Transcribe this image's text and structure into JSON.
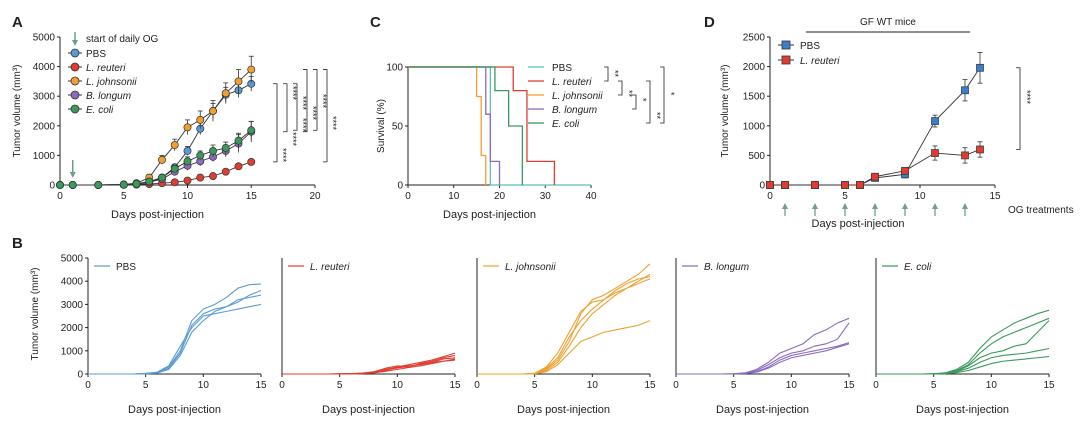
{
  "colors": {
    "pbs": "#5b9bd5",
    "reuteri": "#e03c31",
    "johnsonii": "#f0a030",
    "longum": "#8a6bbf",
    "coli": "#3a9a5a",
    "arrow": "#6aa08a"
  },
  "chart_data": [
    {
      "id": "A",
      "type": "line",
      "panel_label": "A",
      "xlabel": "Days post-injection",
      "ylabel": "Tumor volume (mm³)",
      "xlim": [
        0,
        20
      ],
      "ylim": [
        0,
        5000
      ],
      "xticks": [
        0,
        5,
        10,
        15,
        20
      ],
      "yticks": [
        0,
        1000,
        2000,
        3000,
        4000,
        5000
      ],
      "annotation": "start of daily OG",
      "series": [
        {
          "name": "PBS",
          "color": "#5b9bd5",
          "x": [
            0,
            1,
            3,
            5,
            6,
            7,
            8,
            9,
            10,
            11,
            12,
            13,
            14,
            15
          ],
          "values": [
            0,
            0,
            0,
            10,
            30,
            80,
            250,
            600,
            1150,
            1900,
            2500,
            3050,
            3200,
            3420
          ],
          "err": [
            0,
            0,
            0,
            10,
            15,
            30,
            60,
            100,
            150,
            200,
            250,
            250,
            250,
            250
          ]
        },
        {
          "name": "L. reuteri",
          "color": "#e03c31",
          "x": [
            0,
            1,
            3,
            5,
            6,
            7,
            8,
            9,
            10,
            11,
            12,
            13,
            14,
            15
          ],
          "values": [
            0,
            0,
            0,
            5,
            15,
            30,
            60,
            90,
            150,
            250,
            300,
            450,
            630,
            780
          ],
          "err": [
            0,
            0,
            0,
            5,
            5,
            10,
            15,
            20,
            25,
            30,
            40,
            50,
            60,
            80
          ]
        },
        {
          "name": "L. johnsonii",
          "color": "#f0a030",
          "x": [
            0,
            1,
            3,
            5,
            6,
            7,
            8,
            9,
            10,
            11,
            12,
            13,
            14,
            15
          ],
          "values": [
            0,
            0,
            0,
            20,
            60,
            250,
            850,
            1350,
            1950,
            2200,
            2500,
            3100,
            3500,
            3900
          ],
          "err": [
            0,
            0,
            0,
            10,
            30,
            100,
            150,
            200,
            250,
            300,
            350,
            350,
            400,
            450
          ]
        },
        {
          "name": "B. longum",
          "color": "#8a6bbf",
          "x": [
            0,
            1,
            3,
            5,
            6,
            7,
            8,
            9,
            10,
            11,
            12,
            13,
            14,
            15
          ],
          "values": [
            0,
            0,
            0,
            10,
            40,
            100,
            200,
            450,
            650,
            800,
            950,
            1150,
            1400,
            1800
          ],
          "err": [
            0,
            0,
            0,
            10,
            20,
            40,
            60,
            100,
            150,
            150,
            150,
            200,
            300,
            350
          ]
        },
        {
          "name": "E. coli",
          "color": "#3a9a5a",
          "x": [
            0,
            1,
            3,
            5,
            6,
            7,
            8,
            9,
            10,
            11,
            12,
            13,
            14,
            15
          ],
          "values": [
            0,
            0,
            0,
            10,
            40,
            120,
            250,
            550,
            800,
            1000,
            1150,
            1250,
            1500,
            1850
          ],
          "err": [
            0,
            0,
            0,
            10,
            20,
            40,
            70,
            120,
            150,
            150,
            200,
            200,
            250,
            300
          ]
        }
      ],
      "significance": [
        "****",
        "****",
        "****",
        "****",
        "****",
        "****",
        "****",
        "****"
      ],
      "legend_location": "top-left"
    },
    {
      "id": "C",
      "type": "line",
      "panel_label": "C",
      "xlabel": "Days post-injection",
      "ylabel": "Survival (%)",
      "xlim": [
        0,
        40
      ],
      "ylim": [
        0,
        100
      ],
      "xticks": [
        0,
        10,
        20,
        30,
        40
      ],
      "yticks": [
        0,
        50,
        100
      ],
      "series": [
        {
          "name": "PBS",
          "color": "#5abfbf",
          "x": [
            0,
            18,
            18,
            40
          ],
          "values": [
            100,
            100,
            0,
            0
          ]
        },
        {
          "name": "L. reuteri",
          "color": "#e03c31",
          "x": [
            0,
            23,
            23,
            26,
            26,
            32,
            32
          ],
          "values": [
            100,
            100,
            80,
            80,
            20,
            20,
            0
          ]
        },
        {
          "name": "L. johnsonii",
          "color": "#f0a030",
          "x": [
            0,
            15,
            15,
            16,
            16,
            17,
            17
          ],
          "values": [
            100,
            100,
            75,
            75,
            25,
            25,
            0
          ]
        },
        {
          "name": "B. longum",
          "color": "#8a6bbf",
          "x": [
            0,
            17,
            17,
            18,
            18,
            20,
            20
          ],
          "values": [
            100,
            100,
            60,
            60,
            20,
            20,
            0
          ]
        },
        {
          "name": "E. coli",
          "color": "#3a9a5a",
          "x": [
            0,
            19,
            19,
            22,
            22,
            25,
            25
          ],
          "values": [
            100,
            100,
            80,
            80,
            50,
            50,
            0
          ]
        }
      ],
      "significance": [
        "**",
        "**",
        "*",
        "**",
        "*"
      ],
      "legend_location": "right"
    },
    {
      "id": "D",
      "type": "line",
      "panel_label": "D",
      "title": "GF WT mice",
      "xlabel": "Days post-injection",
      "ylabel": "Tumor volume (mm³)",
      "xlim": [
        0,
        15
      ],
      "ylim": [
        0,
        2500
      ],
      "xticks": [
        0,
        5,
        10,
        15
      ],
      "yticks": [
        0,
        500,
        1000,
        1500,
        2000,
        2500
      ],
      "annotation": "OG treatments",
      "treatment_days": [
        1,
        3,
        5,
        7,
        9,
        11,
        13
      ],
      "series": [
        {
          "name": "PBS",
          "color": "#3a80c8",
          "x": [
            0,
            1,
            3,
            5,
            6,
            7,
            9,
            11,
            13,
            14
          ],
          "values": [
            0,
            0,
            0,
            0,
            0,
            120,
            180,
            1080,
            1600,
            1980
          ],
          "err": [
            0,
            0,
            0,
            0,
            10,
            30,
            60,
            100,
            180,
            260
          ]
        },
        {
          "name": "L. reuteri",
          "color": "#e03c31",
          "x": [
            0,
            1,
            3,
            5,
            6,
            7,
            9,
            11,
            13,
            14
          ],
          "values": [
            0,
            0,
            0,
            0,
            0,
            140,
            240,
            540,
            500,
            600
          ],
          "err": [
            0,
            0,
            0,
            0,
            10,
            30,
            40,
            120,
            130,
            130
          ]
        }
      ],
      "significance": [
        "****"
      ],
      "legend_location": "top-left"
    },
    {
      "id": "B",
      "type": "line",
      "panel_label": "B",
      "xlabel": "Days post-injection",
      "ylabel": "Tumor volume (mm³)",
      "xlim": [
        0,
        15
      ],
      "ylim": [
        0,
        5000
      ],
      "xticks": [
        0,
        5,
        10,
        15
      ],
      "yticks": [
        0,
        1000,
        2000,
        3000,
        4000,
        5000
      ],
      "panels": [
        {
          "name": "PBS",
          "color": "#5b9bd5",
          "lines": [
            [
              0,
              0,
              0,
              0,
              0,
              20,
              60,
              300,
              1000,
              2300,
              2800,
              3000,
              3300,
              3700,
              3850,
              3880
            ],
            [
              0,
              0,
              0,
              0,
              0,
              10,
              50,
              250,
              900,
              2100,
              2600,
              2800,
              2900,
              3200,
              3300,
              3400
            ],
            [
              0,
              0,
              0,
              0,
              0,
              30,
              80,
              350,
              1200,
              2000,
              2500,
              2600,
              2700,
              2800,
              2900,
              3000
            ],
            [
              0,
              0,
              0,
              0,
              0,
              10,
              40,
              200,
              800,
              1800,
              2300,
              2700,
              2900,
              3100,
              3400,
              3600
            ]
          ]
        },
        {
          "name": "L. reuteri",
          "color": "#e03c31",
          "lines": [
            [
              0,
              0,
              0,
              0,
              0,
              5,
              10,
              30,
              80,
              150,
              300,
              400,
              500,
              600,
              750,
              900
            ],
            [
              0,
              0,
              0,
              0,
              0,
              5,
              15,
              40,
              100,
              250,
              350,
              300,
              450,
              550,
              700,
              800
            ],
            [
              0,
              0,
              0,
              0,
              0,
              3,
              10,
              20,
              60,
              200,
              300,
              350,
              400,
              500,
              550,
              600
            ],
            [
              0,
              0,
              0,
              0,
              0,
              5,
              10,
              25,
              70,
              180,
              260,
              330,
              420,
              500,
              650,
              700
            ],
            [
              0,
              0,
              0,
              0,
              0,
              2,
              8,
              20,
              50,
              120,
              200,
              280,
              350,
              450,
              550,
              650
            ]
          ]
        },
        {
          "name": "L. johnsonii",
          "color": "#f0a030",
          "lines": [
            [
              0,
              0,
              0,
              0,
              0,
              20,
              200,
              600,
              1400,
              2600,
              3200,
              3400,
              3700,
              4000,
              4300,
              4750
            ],
            [
              0,
              0,
              0,
              0,
              0,
              30,
              300,
              900,
              1800,
              2700,
              3100,
              3200,
              3500,
              3700,
              4000,
              4300
            ],
            [
              0,
              0,
              0,
              0,
              0,
              20,
              250,
              700,
              1600,
              2300,
              2800,
              3200,
              3600,
              3900,
              4100,
              4200
            ],
            [
              0,
              0,
              0,
              0,
              0,
              10,
              150,
              500,
              1200,
              2000,
              2600,
              3000,
              3400,
              3700,
              3900,
              4100
            ],
            [
              0,
              0,
              0,
              0,
              0,
              10,
              100,
              400,
              900,
              1400,
              1600,
              1800,
              1900,
              2000,
              2100,
              2300
            ]
          ]
        },
        {
          "name": "B. longum",
          "color": "#8a6bbf",
          "lines": [
            [
              0,
              0,
              0,
              0,
              0,
              10,
              50,
              200,
              500,
              900,
              1100,
              1300,
              1700,
              1900,
              2200,
              2400
            ],
            [
              0,
              0,
              0,
              0,
              0,
              10,
              40,
              150,
              400,
              700,
              900,
              1000,
              1200,
              1300,
              1500,
              2200
            ],
            [
              0,
              0,
              0,
              0,
              0,
              5,
              30,
              100,
              300,
              600,
              800,
              900,
              1000,
              1100,
              1200,
              1350
            ],
            [
              0,
              0,
              0,
              0,
              0,
              5,
              20,
              80,
              250,
              500,
              700,
              800,
              900,
              1000,
              1150,
              1300
            ]
          ]
        },
        {
          "name": "E. coli",
          "color": "#3a9a5a",
          "lines": [
            [
              0,
              0,
              0,
              0,
              0,
              10,
              50,
              200,
              500,
              1100,
              1600,
              1900,
              2200,
              2400,
              2600,
              2750
            ],
            [
              0,
              0,
              0,
              0,
              0,
              10,
              40,
              150,
              400,
              900,
              1300,
              1600,
              1800,
              2000,
              2200,
              2400
            ],
            [
              0,
              0,
              0,
              0,
              0,
              5,
              30,
              120,
              350,
              700,
              900,
              1000,
              1200,
              1300,
              1800,
              2300
            ],
            [
              0,
              0,
              0,
              0,
              0,
              5,
              20,
              100,
              250,
              500,
              700,
              800,
              850,
              900,
              1000,
              1100
            ],
            [
              0,
              0,
              0,
              0,
              0,
              5,
              15,
              60,
              150,
              300,
              450,
              550,
              600,
              650,
              700,
              750
            ]
          ]
        }
      ]
    }
  ]
}
